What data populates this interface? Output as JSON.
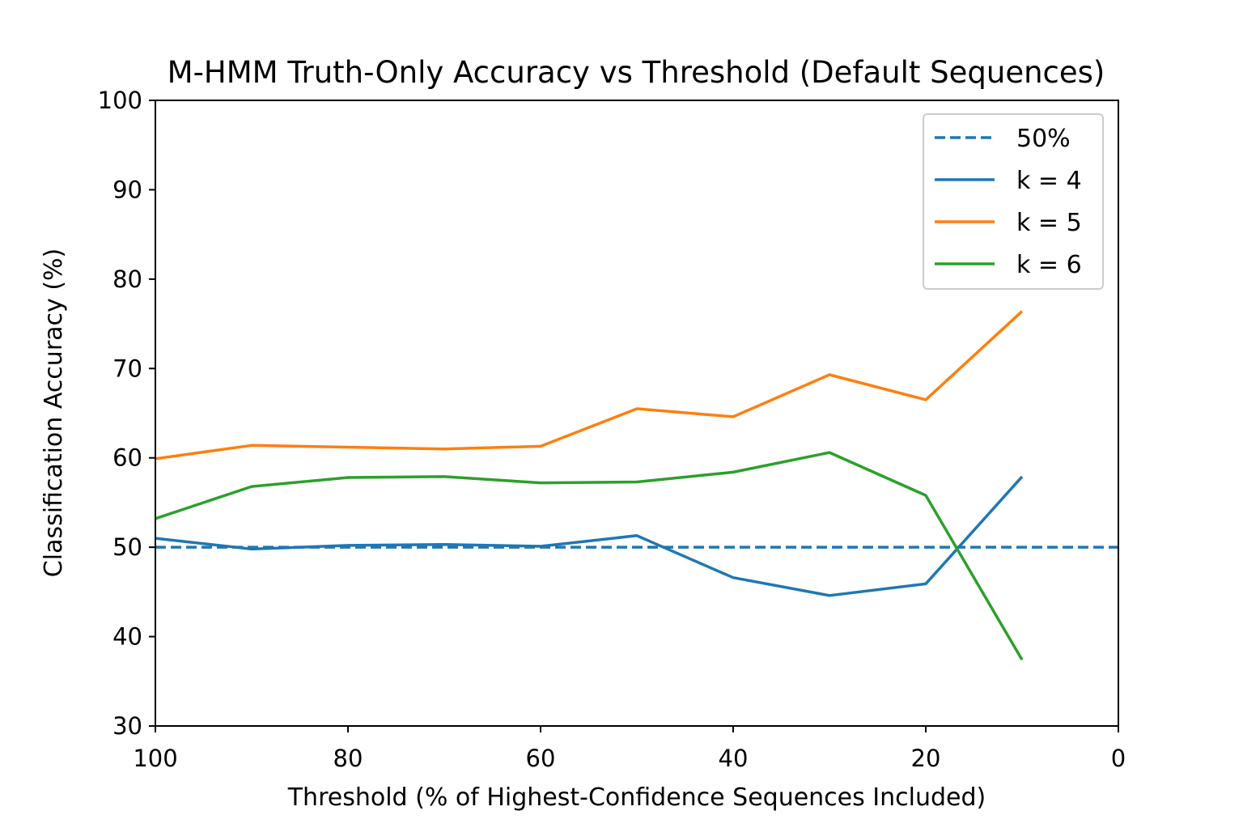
{
  "chart_data": {
    "type": "line",
    "title": "M-HMM Truth-Only Accuracy vs Threshold (Default Sequences)",
    "xlabel": "Threshold (% of Highest-Confidence Sequences Included)",
    "ylabel": "Classification Accuracy (%)",
    "xlim": [
      100,
      0
    ],
    "ylim": [
      30,
      100
    ],
    "x_reversed": true,
    "xticks": [
      100,
      80,
      60,
      40,
      20,
      0
    ],
    "xtick_labels": [
      "100",
      "80",
      "60",
      "40",
      "20",
      "0"
    ],
    "yticks": [
      30,
      40,
      50,
      60,
      70,
      80,
      90,
      100
    ],
    "ytick_labels": [
      "30",
      "40",
      "50",
      "60",
      "70",
      "80",
      "90",
      "100"
    ],
    "grid": false,
    "legend_position": "top-right",
    "reference_line": {
      "name": "50%",
      "y": 50,
      "style": "dashed",
      "color": "#1f77b4"
    },
    "x": [
      100,
      90,
      80,
      70,
      60,
      50,
      40,
      30,
      20,
      10
    ],
    "series": [
      {
        "name": "k = 4",
        "color": "#1f77b4",
        "values": [
          51.0,
          49.8,
          50.2,
          50.3,
          50.1,
          51.3,
          46.6,
          44.6,
          45.9,
          57.9
        ]
      },
      {
        "name": "k = 5",
        "color": "#ff7f0e",
        "values": [
          59.9,
          61.4,
          61.2,
          61.0,
          61.3,
          65.5,
          64.6,
          69.3,
          66.5,
          76.4
        ]
      },
      {
        "name": "k = 6",
        "color": "#2ca02c",
        "values": [
          53.2,
          56.8,
          57.8,
          57.9,
          57.2,
          57.3,
          58.4,
          60.6,
          55.8,
          37.4
        ]
      }
    ]
  }
}
